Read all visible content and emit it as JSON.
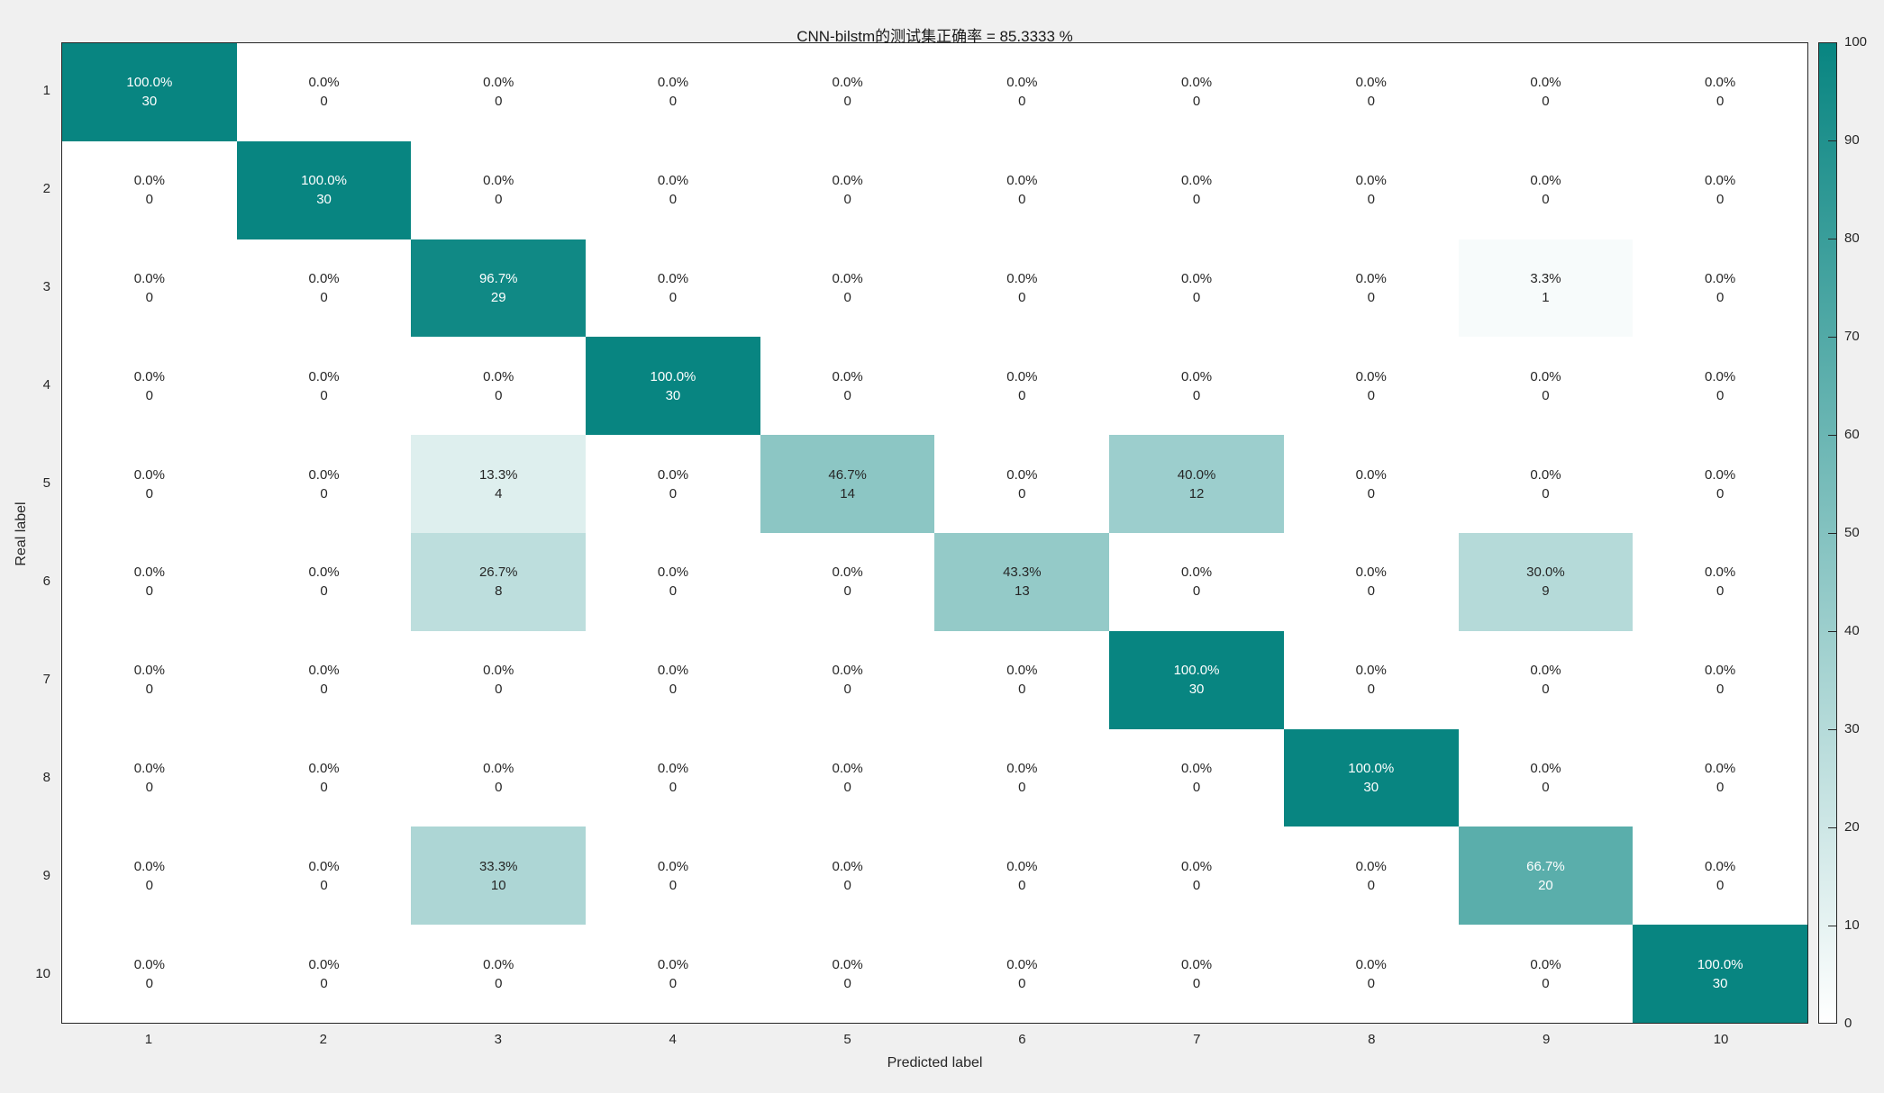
{
  "chart_data": {
    "type": "heatmap",
    "title": "CNN-bilstm的测试集正确率 = 85.3333 %",
    "xlabel": "Predicted label",
    "ylabel": "Real label",
    "x_ticks": [
      "1",
      "2",
      "3",
      "4",
      "5",
      "6",
      "7",
      "8",
      "9",
      "10"
    ],
    "y_ticks": [
      "1",
      "2",
      "3",
      "4",
      "5",
      "6",
      "7",
      "8",
      "9",
      "10"
    ],
    "cell_counts": [
      [
        30,
        0,
        0,
        0,
        0,
        0,
        0,
        0,
        0,
        0
      ],
      [
        0,
        30,
        0,
        0,
        0,
        0,
        0,
        0,
        0,
        0
      ],
      [
        0,
        0,
        29,
        0,
        0,
        0,
        0,
        0,
        1,
        0
      ],
      [
        0,
        0,
        0,
        30,
        0,
        0,
        0,
        0,
        0,
        0
      ],
      [
        0,
        0,
        4,
        0,
        14,
        0,
        12,
        0,
        0,
        0
      ],
      [
        0,
        0,
        8,
        0,
        0,
        13,
        0,
        0,
        9,
        0
      ],
      [
        0,
        0,
        0,
        0,
        0,
        0,
        30,
        0,
        0,
        0
      ],
      [
        0,
        0,
        0,
        0,
        0,
        0,
        0,
        30,
        0,
        0
      ],
      [
        0,
        0,
        10,
        0,
        0,
        0,
        0,
        0,
        20,
        0
      ],
      [
        0,
        0,
        0,
        0,
        0,
        0,
        0,
        0,
        0,
        30
      ]
    ],
    "cell_percents": [
      [
        100,
        0,
        0,
        0,
        0,
        0,
        0,
        0,
        0,
        0
      ],
      [
        0,
        100,
        0,
        0,
        0,
        0,
        0,
        0,
        0,
        0
      ],
      [
        0,
        0,
        96.7,
        0,
        0,
        0,
        0,
        0,
        3.3,
        0
      ],
      [
        0,
        0,
        0,
        100,
        0,
        0,
        0,
        0,
        0,
        0
      ],
      [
        0,
        0,
        13.3,
        0,
        46.7,
        0,
        40.0,
        0,
        0,
        0
      ],
      [
        0,
        0,
        26.7,
        0,
        0,
        43.3,
        0,
        0,
        30.0,
        0
      ],
      [
        0,
        0,
        0,
        0,
        0,
        0,
        100,
        0,
        0,
        0
      ],
      [
        0,
        0,
        0,
        0,
        0,
        0,
        0,
        100,
        0,
        0
      ],
      [
        0,
        0,
        33.3,
        0,
        0,
        0,
        0,
        0,
        66.7,
        0
      ],
      [
        0,
        0,
        0,
        0,
        0,
        0,
        0,
        0,
        0,
        100
      ]
    ],
    "colorbar": {
      "min": 0,
      "max": 100,
      "ticks": [
        0,
        10,
        20,
        30,
        40,
        50,
        60,
        70,
        80,
        90,
        100
      ],
      "position": "right"
    },
    "grid": false,
    "colors": {
      "heat_max": "#088581",
      "heat_min": "#ffffff",
      "figure_background": "#f0f0f0",
      "plot_background": "#ffffff",
      "axis_line": "#262626",
      "text_dark": "#262626",
      "text_light": "#ffffff"
    }
  }
}
